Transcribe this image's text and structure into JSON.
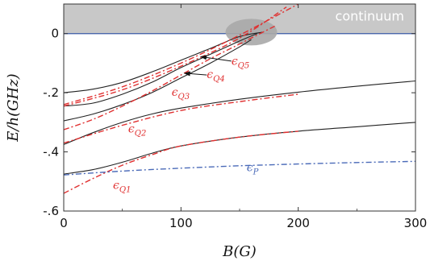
{
  "chart_data": {
    "type": "line",
    "title": "",
    "xlabel": "B(G)",
    "ylabel": "E/h(GHz)",
    "xlim": [
      0,
      300
    ],
    "ylim": [
      -0.6,
      0.1
    ],
    "x_ticks": [
      0,
      100,
      200,
      300
    ],
    "x_tick_labels": [
      "0",
      "100",
      "200",
      "300"
    ],
    "y_ticks": [
      0,
      -0.2,
      -0.4,
      -0.6
    ],
    "y_tick_labels": [
      "0",
      "-.2",
      "-.4",
      "-.6"
    ],
    "continuum_region": {
      "y_from": 0,
      "y_to": 0.1,
      "label": "continuum",
      "color": "#c8c8c8"
    },
    "zero_line_color": "#3b5aa6",
    "ellipse": {
      "cx": 160,
      "cy": 0.005,
      "rx": 22,
      "ry": 0.045,
      "color": "#a8a8a8"
    },
    "series": [
      {
        "style": "solid",
        "color": "#222222",
        "x": [
          0,
          25,
          50,
          75,
          100,
          125,
          150,
          170
        ],
        "y": [
          -0.2,
          -0.188,
          -0.165,
          -0.13,
          -0.09,
          -0.05,
          -0.01,
          0.005
        ]
      },
      {
        "style": "solid",
        "color": "#222222",
        "x": [
          0,
          25,
          50,
          75,
          100,
          125,
          150,
          165
        ],
        "y": [
          -0.245,
          -0.235,
          -0.205,
          -0.165,
          -0.115,
          -0.07,
          -0.025,
          0
        ]
      },
      {
        "style": "solid",
        "color": "#222222",
        "x": [
          0,
          25,
          50,
          75,
          100,
          125,
          150,
          160
        ],
        "y": [
          -0.295,
          -0.272,
          -0.24,
          -0.2,
          -0.15,
          -0.1,
          -0.045,
          -0.02
        ]
      },
      {
        "style": "solid",
        "color": "#222222",
        "x": [
          0,
          25,
          50,
          75,
          100,
          150,
          200,
          250,
          300
        ],
        "y": [
          -0.375,
          -0.335,
          -0.3,
          -0.272,
          -0.252,
          -0.222,
          -0.198,
          -0.178,
          -0.16
        ]
      },
      {
        "style": "solid",
        "color": "#222222",
        "x": [
          0,
          25,
          50,
          75,
          100,
          150,
          200,
          250,
          300
        ],
        "y": [
          -0.475,
          -0.46,
          -0.435,
          -0.405,
          -0.38,
          -0.35,
          -0.33,
          -0.315,
          -0.3
        ]
      },
      {
        "style": "dashdot",
        "color": "#e03030",
        "x": [
          0,
          50,
          100,
          150,
          200
        ],
        "y": [
          -0.24,
          -0.18,
          -0.1,
          -0.005,
          0.1
        ]
      },
      {
        "style": "dashdot",
        "color": "#e03030",
        "x": [
          0,
          50,
          100,
          150,
          190
        ],
        "y": [
          -0.245,
          -0.19,
          -0.11,
          -0.015,
          0.09
        ]
      },
      {
        "style": "dashdot",
        "color": "#e03030",
        "x": [
          0,
          25,
          50,
          75,
          100,
          125,
          150,
          180
        ],
        "y": [
          -0.325,
          -0.29,
          -0.245,
          -0.195,
          -0.14,
          -0.085,
          -0.035,
          0.025
        ]
      },
      {
        "style": "dashdot",
        "color": "#e03030",
        "x": [
          0,
          50,
          100,
          150,
          200
        ],
        "y": [
          -0.37,
          -0.31,
          -0.26,
          -0.23,
          -0.205
        ]
      },
      {
        "style": "dashdot",
        "color": "#e03030",
        "x": [
          0,
          25,
          50,
          75,
          100,
          150,
          200
        ],
        "y": [
          -0.54,
          -0.49,
          -0.445,
          -0.41,
          -0.38,
          -0.35,
          -0.33
        ]
      },
      {
        "style": "dashdot",
        "color": "#4a6ab8",
        "x": [
          0,
          50,
          100,
          150,
          200,
          250,
          300
        ],
        "y": [
          -0.478,
          -0.465,
          -0.455,
          -0.447,
          -0.441,
          -0.436,
          -0.432
        ]
      }
    ],
    "annotations": [
      {
        "base": "ϵ",
        "sub": "Q5",
        "color": "#e03030",
        "x": 143,
        "y": -0.105,
        "arrow_from": [
          143,
          -0.093
        ],
        "arrow_to": [
          117,
          -0.078
        ]
      },
      {
        "base": "ϵ",
        "sub": "Q4",
        "color": "#e03030",
        "x": 122,
        "y": -0.15,
        "arrow_from": [
          122,
          -0.14
        ],
        "arrow_to": [
          103,
          -0.134
        ]
      },
      {
        "base": "ϵ",
        "sub": "Q3",
        "color": "#e03030",
        "x": 92,
        "y": -0.21
      },
      {
        "base": "ϵ",
        "sub": "Q2",
        "color": "#e03030",
        "x": 55,
        "y": -0.335
      },
      {
        "base": "ϵ",
        "sub": "Q1",
        "color": "#e03030",
        "x": 42,
        "y": -0.525
      },
      {
        "base": "ϵ",
        "sub": "P",
        "color": "#4a6ab8",
        "x": 156,
        "y": -0.465
      }
    ]
  }
}
